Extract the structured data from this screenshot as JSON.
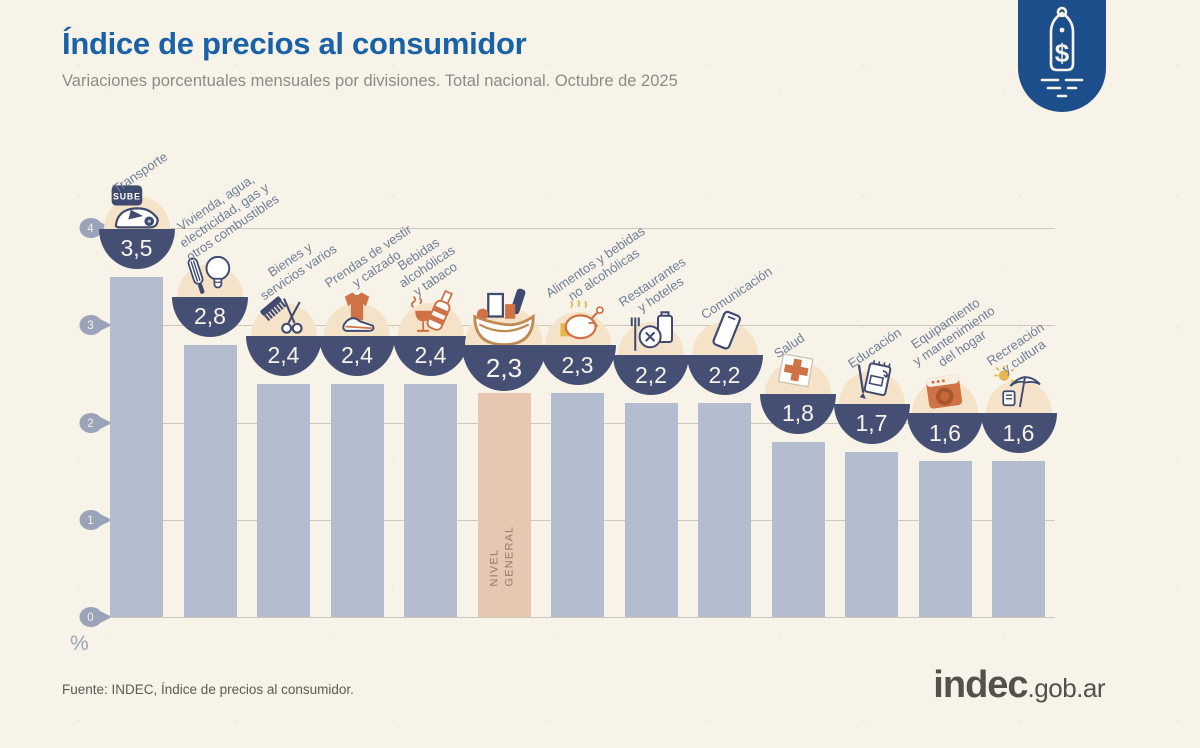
{
  "header": {
    "title": "Índice de precios al consumidor",
    "subtitle": "Variaciones porcentuales mensuales por divisiones. Total nacional. Octubre de 2025"
  },
  "badge": {
    "symbol": "$",
    "color": "#1d4e8c"
  },
  "chart_data": {
    "type": "bar",
    "title": "Índice de precios al consumidor",
    "subtitle": "Variaciones porcentuales mensuales por divisiones. Total nacional. Octubre de 2025",
    "categories": [
      "Transporte",
      "Vivienda, agua, electricidad, gas y otros combustibles",
      "Bienes y servicios varios",
      "Prendas de vestir y calzado",
      "Bebidas alcohólicas y tabaco",
      "Nivel general",
      "Alimentos y bebidas no alcohólicas",
      "Restaurantes y hoteles",
      "Comunicación",
      "Salud",
      "Educación",
      "Equipamiento y mantenimiento del hogar",
      "Recreación y cultura"
    ],
    "values": [
      3.5,
      2.8,
      2.4,
      2.4,
      2.4,
      2.3,
      2.3,
      2.2,
      2.2,
      1.8,
      1.7,
      1.6,
      1.6
    ],
    "value_labels": [
      "3,5",
      "2,8",
      "2,4",
      "2,4",
      "2,4",
      "2,3",
      "2,3",
      "2,2",
      "2,2",
      "1,8",
      "1,7",
      "1,6",
      "1,6"
    ],
    "label_lines": [
      [
        "Transporte"
      ],
      [
        "Vivienda, agua,",
        "electricidad, gas y",
        "otros combustibles"
      ],
      [
        "Bienes y",
        "servicios varios"
      ],
      [
        "Prendas de vestir",
        "y calzado"
      ],
      [
        "Bebidas",
        "alcohólicas",
        "y tabaco"
      ],
      [],
      [
        "Alimentos y bebidas",
        "no alcohólicas"
      ],
      [
        "Restaurantes",
        "y hoteles"
      ],
      [
        "Comunicación"
      ],
      [
        "Salud"
      ],
      [
        "Educación"
      ],
      [
        "Equipamiento",
        "y mantenimiento",
        "del hogar"
      ],
      [
        "Recreación",
        "y cultura"
      ]
    ],
    "icons": [
      "transport-icon",
      "housing-icon",
      "misc-goods-icon",
      "clothing-icon",
      "alcohol-tobacco-icon",
      "basket-icon",
      "food-icon",
      "restaurant-hotel-icon",
      "phone-icon",
      "health-icon",
      "education-icon",
      "home-equipment-icon",
      "recreation-icon"
    ],
    "highlight_index": 5,
    "highlight_label_lines": [
      "NIVEL",
      "GENERAL"
    ],
    "sube_card_text": "SUBE",
    "ylabel": "%",
    "yticks": [
      0,
      1,
      2,
      3,
      4
    ],
    "ylim": [
      0,
      4
    ],
    "grid": true,
    "legend": false,
    "colors": {
      "bar": "#b4bccf",
      "highlight_bar": "#e7c6b2",
      "bowl": "#454f74",
      "icon_bg": "#f4e3c9",
      "navy": "#3f4a6e",
      "orange": "#cf7246",
      "yellow": "#e8b54d",
      "tick": "#9aa3b8",
      "grid": "#ccc7b9"
    }
  },
  "footer": {
    "source": "Fuente: INDEC, Índice de precios al consumidor.",
    "logo_main": "indec",
    "logo_suffix": ".gob.ar"
  }
}
